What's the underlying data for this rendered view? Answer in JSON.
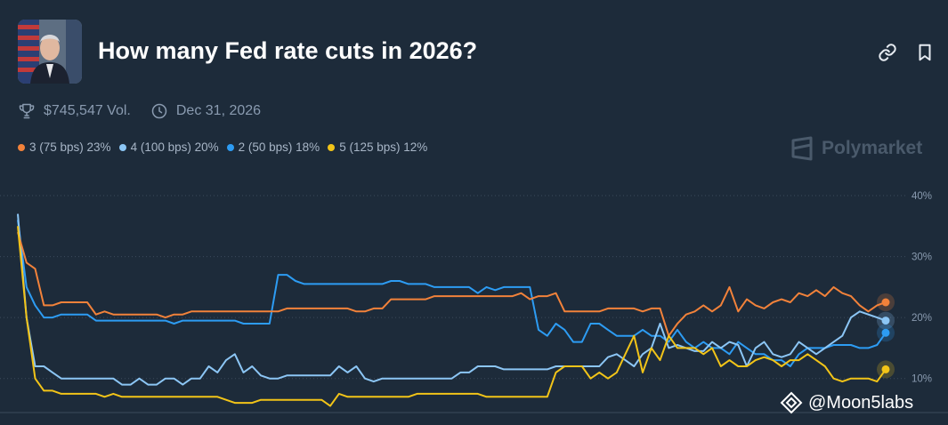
{
  "header": {
    "title": "How many Fed rate cuts in 2026?"
  },
  "meta": {
    "volume": "$745,547 Vol.",
    "end_date": "Dec 31, 2026"
  },
  "legend": [
    {
      "label": "3 (75 bps) 23%",
      "color": "#f2823a"
    },
    {
      "label": "4 (100 bps) 20%",
      "color": "#8cc6f5"
    },
    {
      "label": "2 (50 bps) 18%",
      "color": "#2d9cf3"
    },
    {
      "label": "5 (125 bps) 12%",
      "color": "#f2c418"
    }
  ],
  "brand": "Polymarket",
  "watermark": "@Moon5labs",
  "icons": [
    "trophy-icon",
    "clock-icon",
    "link-icon",
    "bookmark-icon",
    "polymarket-logo-icon",
    "binance-square-icon"
  ],
  "chart_data": {
    "type": "line",
    "ylim": [
      5,
      40
    ],
    "yticks": [
      "10%",
      "20%",
      "30%",
      "40%"
    ],
    "ytick_values": [
      10,
      20,
      30,
      40
    ],
    "grid": true,
    "x": [
      0,
      1,
      2,
      3,
      4,
      5,
      6,
      7,
      8,
      9,
      10,
      11,
      12,
      13,
      14,
      15,
      16,
      17,
      18,
      19,
      20,
      21,
      22,
      23,
      24,
      25,
      26,
      27,
      28,
      29,
      30,
      31,
      32,
      33,
      34,
      35,
      36,
      37,
      38,
      39,
      40,
      41,
      42,
      43,
      44,
      45,
      46,
      47,
      48,
      49,
      50,
      51,
      52,
      53,
      54,
      55,
      56,
      57,
      58,
      59,
      60,
      61,
      62,
      63,
      64,
      65,
      66,
      67,
      68,
      69,
      70,
      71,
      72,
      73,
      74,
      75,
      76,
      77,
      78,
      79,
      80,
      81,
      82,
      83,
      84,
      85,
      86,
      87,
      88,
      89,
      90,
      91,
      92,
      93,
      94,
      95,
      96,
      97,
      98,
      99,
      100
    ],
    "series": [
      {
        "name": "3 (75 bps)",
        "color": "#f2823a",
        "values": [
          34,
          29,
          28,
          22,
          22,
          22.5,
          22.5,
          22.5,
          22.5,
          20.5,
          21,
          20.5,
          20.5,
          20.5,
          20.5,
          20.5,
          20.5,
          20,
          20.5,
          20.5,
          21,
          21,
          21,
          21,
          21,
          21,
          21,
          21,
          21,
          21,
          21,
          21.5,
          21.5,
          21.5,
          21.5,
          21.5,
          21.5,
          21.5,
          21.5,
          21,
          21,
          21.5,
          21.5,
          23,
          23,
          23,
          23,
          23,
          23.5,
          23.5,
          23.5,
          23.5,
          23.5,
          23.5,
          23.5,
          23.5,
          23.5,
          23.5,
          24,
          23,
          23.5,
          23.5,
          24,
          21,
          21,
          21,
          21,
          21,
          21.5,
          21.5,
          21.5,
          21.5,
          21,
          21.5,
          21.5,
          17,
          19,
          20.5,
          21,
          22,
          21,
          22,
          25,
          21,
          23,
          22,
          21.5,
          22.5,
          23,
          22.5,
          24,
          23.5,
          24.5,
          23.5,
          25,
          24,
          23.5,
          22,
          21,
          22,
          22.5
        ]
      },
      {
        "name": "4 (100 bps)",
        "color": "#8cc6f5",
        "values": [
          37,
          20,
          12,
          12,
          11,
          10,
          10,
          10,
          10,
          10,
          10,
          10,
          9,
          9,
          10,
          9,
          9,
          10,
          10,
          9,
          10,
          10,
          12,
          11,
          13,
          14,
          11,
          12,
          10.5,
          10,
          10,
          10.5,
          10.5,
          10.5,
          10.5,
          10.5,
          10.5,
          12,
          11,
          12,
          10,
          9.5,
          10,
          10,
          10,
          10,
          10,
          10,
          10,
          10,
          10,
          11,
          11,
          12,
          12,
          12,
          11.5,
          11.5,
          11.5,
          11.5,
          11.5,
          11.5,
          12,
          12,
          12,
          12,
          12,
          12,
          13.5,
          14,
          13,
          12,
          14,
          15,
          19,
          15,
          15.5,
          15,
          14.5,
          14.5,
          16,
          15,
          16,
          15.5,
          12,
          15,
          16,
          14,
          13.5,
          14,
          16,
          15,
          14,
          15,
          16,
          17,
          20,
          21,
          20.5,
          20,
          19.5
        ]
      },
      {
        "name": "2 (50 bps)",
        "color": "#2d9cf3",
        "values": [
          36,
          25,
          22,
          20,
          20,
          20.5,
          20.5,
          20.5,
          20.5,
          19.5,
          19.5,
          19.5,
          19.5,
          19.5,
          19.5,
          19.5,
          19.5,
          19.5,
          19,
          19.5,
          19.5,
          19.5,
          19.5,
          19.5,
          19.5,
          19.5,
          19,
          19,
          19,
          19,
          27,
          27,
          26,
          25.5,
          25.5,
          25.5,
          25.5,
          25.5,
          25.5,
          25.5,
          25.5,
          25.5,
          25.5,
          26,
          26,
          25.5,
          25.5,
          25.5,
          25,
          25,
          25,
          25,
          25,
          24,
          25,
          24.5,
          25,
          25,
          25,
          25,
          18,
          17,
          19,
          18,
          16,
          16,
          19,
          19,
          18,
          17,
          17,
          17,
          18,
          17,
          17,
          16,
          18,
          16,
          15,
          16,
          15,
          15,
          14,
          16,
          15,
          14,
          14,
          13,
          13,
          12,
          14,
          15,
          15,
          15,
          15.5,
          15.5,
          15.5,
          15,
          15,
          15.5,
          17.5
        ]
      },
      {
        "name": "5 (125 bps)",
        "color": "#f2c418",
        "values": [
          35,
          20,
          10,
          8,
          8,
          7.5,
          7.5,
          7.5,
          7.5,
          7.5,
          7,
          7.5,
          7,
          7,
          7,
          7,
          7,
          7,
          7,
          7,
          7,
          7,
          7,
          7,
          6.5,
          6,
          6,
          6,
          6.5,
          6.5,
          6.5,
          6.5,
          6.5,
          6.5,
          6.5,
          6.5,
          5.5,
          7.5,
          7,
          7,
          7,
          7,
          7,
          7,
          7,
          7,
          7.5,
          7.5,
          7.5,
          7.5,
          7.5,
          7.5,
          7.5,
          7.5,
          7,
          7,
          7,
          7,
          7,
          7,
          7,
          7,
          11,
          12,
          12,
          12,
          10,
          11,
          10,
          11,
          14,
          17,
          11,
          15,
          13,
          17,
          15,
          15,
          15,
          14,
          15,
          12,
          13,
          12,
          12,
          13,
          13.5,
          13,
          12,
          13,
          13,
          14,
          13,
          12,
          10,
          9.5,
          10,
          10,
          10,
          9.5,
          11.5
        ]
      }
    ]
  }
}
